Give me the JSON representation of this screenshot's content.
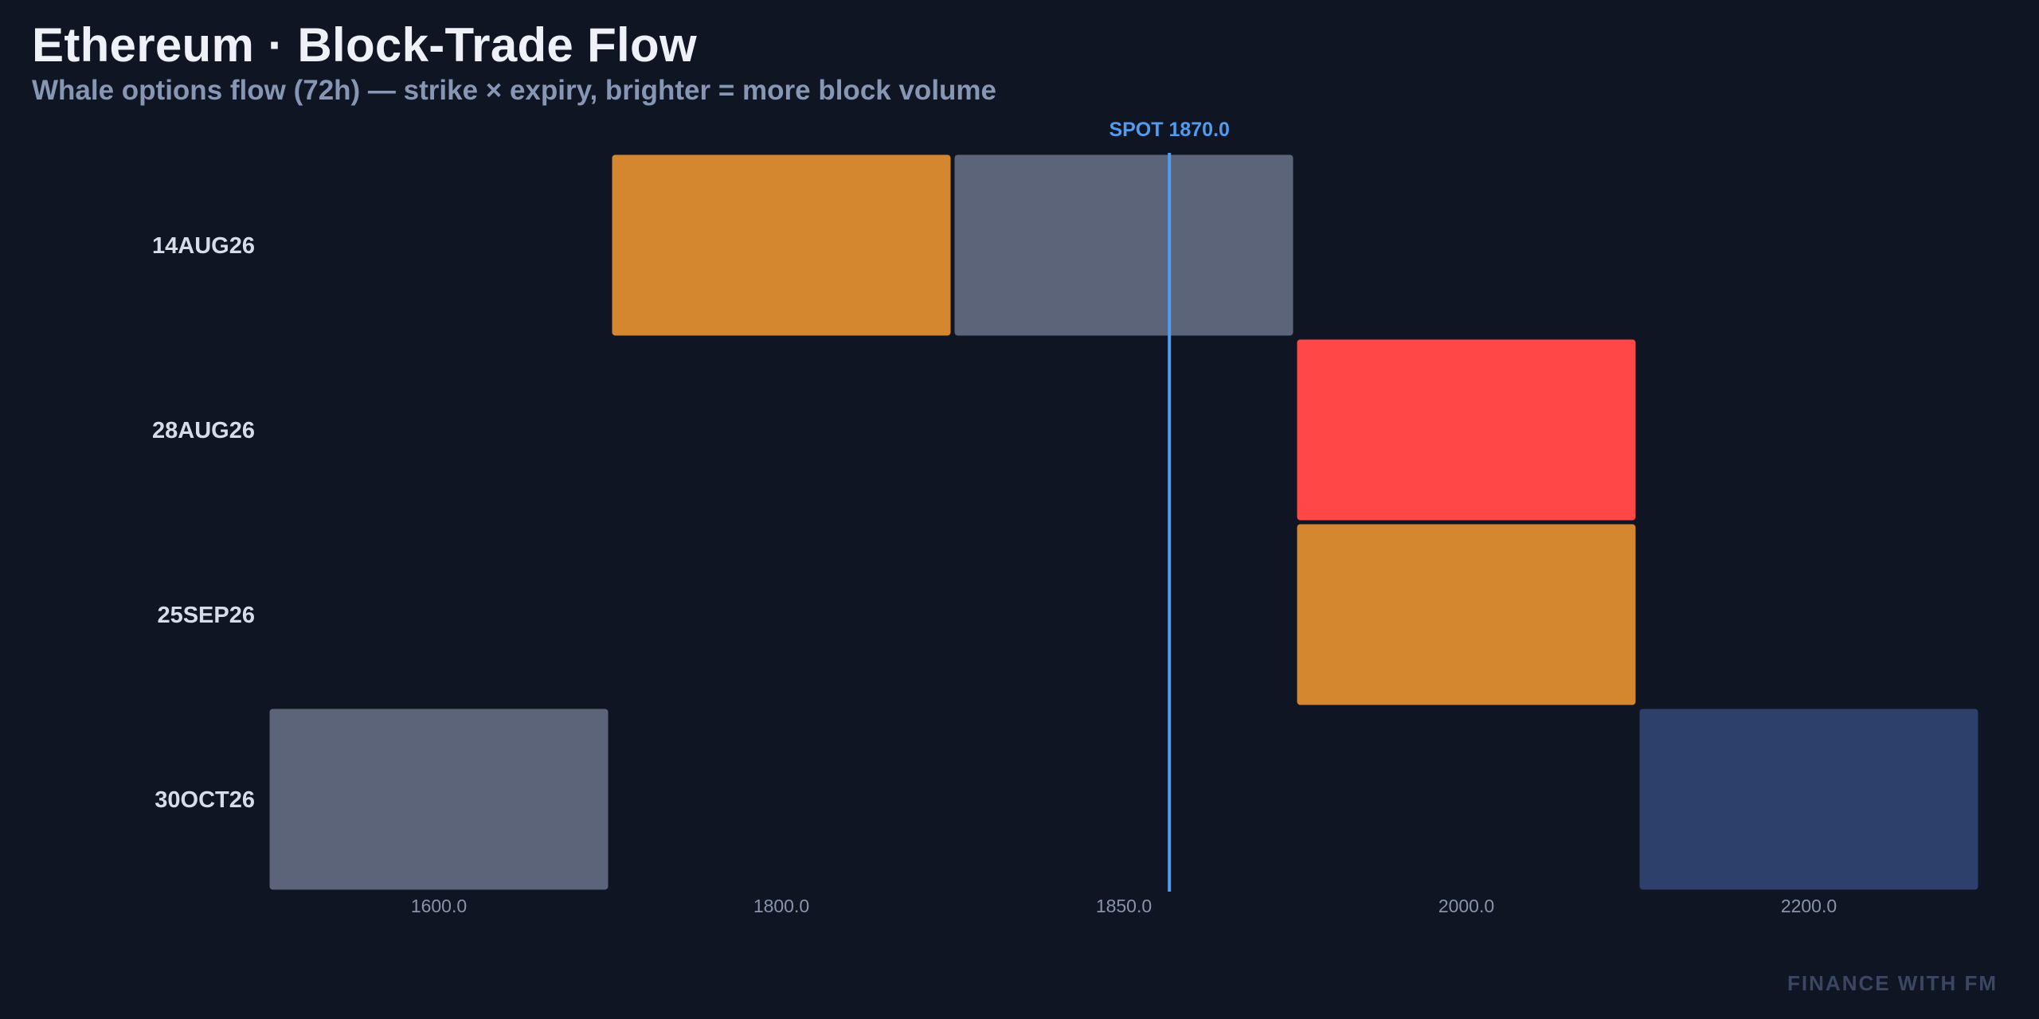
{
  "header": {
    "title": "Ethereum · Block-Trade Flow",
    "subtitle": "Whale options flow (72h) — strike × expiry, brighter = more block volume"
  },
  "watermark": "FINANCE WITH FM",
  "colors": {
    "background": "#0f1523",
    "spot_line": "#4f9cf0",
    "neutral": "#5b6478",
    "orange": "#d4872e",
    "red": "#ff4747",
    "navy": "#2d3f6b"
  },
  "chart_data": {
    "type": "heatmap",
    "title": "Ethereum · Block-Trade Flow",
    "subtitle": "Whale options flow (72h) — strike × expiry, brighter = more block volume",
    "x_categories": [
      "1600.0",
      "1800.0",
      "1850.0",
      "2000.0",
      "2200.0"
    ],
    "y_categories": [
      "14AUG26",
      "28AUG26",
      "25SEP26",
      "30OCT26"
    ],
    "cells": [
      {
        "expiry": "14AUG26",
        "strike": "1800.0",
        "color": "#d4872e"
      },
      {
        "expiry": "14AUG26",
        "strike": "1850.0",
        "color": "#5b6478"
      },
      {
        "expiry": "28AUG26",
        "strike": "2000.0",
        "color": "#ff4747"
      },
      {
        "expiry": "25SEP26",
        "strike": "2000.0",
        "color": "#d4872e"
      },
      {
        "expiry": "30OCT26",
        "strike": "1600.0",
        "color": "#5b6478"
      },
      {
        "expiry": "30OCT26",
        "strike": "2200.0",
        "color": "#2d3f6b"
      }
    ],
    "spot": {
      "label": "SPOT 1870.0",
      "value": 1870.0,
      "between": [
        "1850.0",
        "2000.0"
      ],
      "fraction": 0.133
    },
    "grid": false,
    "legend": "none"
  }
}
